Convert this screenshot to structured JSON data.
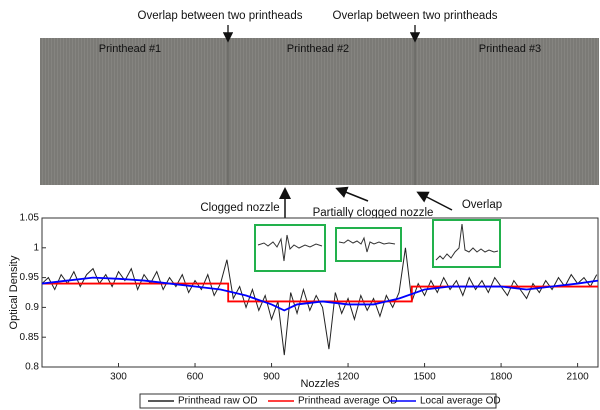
{
  "chart_data": {
    "type": "line",
    "annotations": [
      "Overlap between two printheads",
      "Overlap between two printheads",
      "Printhead #1",
      "Printhead #2",
      "Printhead #3",
      "Clogged nozzle",
      "Partially clogged nozzle",
      "Overlap"
    ],
    "x_label": "Nozzles",
    "y_label": "Optical Density",
    "xlim": [
      0,
      2180
    ],
    "ylim": [
      0.8,
      1.05
    ],
    "xticks": [
      300,
      600,
      900,
      1200,
      1500,
      1800,
      2100
    ],
    "yticks": [
      0.8,
      0.85,
      0.9,
      0.95,
      1,
      1.05
    ],
    "series": [
      {
        "name": "Printhead raw OD",
        "color": "#222222",
        "x": [
          0,
          25,
          50,
          75,
          100,
          125,
          150,
          175,
          200,
          225,
          250,
          275,
          300,
          325,
          350,
          375,
          400,
          425,
          450,
          475,
          500,
          525,
          550,
          575,
          600,
          625,
          650,
          675,
          700,
          725,
          750,
          775,
          800,
          825,
          850,
          875,
          900,
          925,
          950,
          975,
          1000,
          1025,
          1050,
          1075,
          1100,
          1125,
          1150,
          1175,
          1200,
          1225,
          1250,
          1275,
          1300,
          1325,
          1350,
          1375,
          1400,
          1425,
          1450,
          1475,
          1500,
          1525,
          1550,
          1575,
          1600,
          1625,
          1650,
          1675,
          1700,
          1725,
          1750,
          1775,
          1800,
          1825,
          1850,
          1875,
          1900,
          1925,
          1950,
          1975,
          2000,
          2025,
          2050,
          2075,
          2100,
          2125,
          2150,
          2175
        ],
        "values": [
          0.94,
          0.95,
          0.93,
          0.955,
          0.94,
          0.96,
          0.935,
          0.955,
          0.965,
          0.94,
          0.955,
          0.935,
          0.96,
          0.945,
          0.965,
          0.93,
          0.955,
          0.94,
          0.96,
          0.93,
          0.95,
          0.935,
          0.955,
          0.925,
          0.945,
          0.93,
          0.955,
          0.92,
          0.94,
          0.98,
          0.915,
          0.935,
          0.9,
          0.93,
          0.895,
          0.92,
          0.88,
          0.91,
          0.82,
          0.925,
          0.89,
          0.93,
          0.895,
          0.92,
          0.9,
          0.83,
          0.925,
          0.89,
          0.915,
          0.88,
          0.92,
          0.895,
          0.915,
          0.885,
          0.92,
          0.9,
          0.925,
          1.0,
          0.91,
          0.94,
          0.92,
          0.945,
          0.925,
          0.95,
          0.93,
          0.945,
          0.92,
          0.95,
          0.93,
          0.945,
          0.925,
          0.95,
          0.935,
          0.92,
          0.945,
          0.93,
          0.915,
          0.94,
          0.925,
          0.945,
          0.93,
          0.95,
          0.935,
          0.955,
          0.94,
          0.95,
          0.935,
          0.955
        ]
      },
      {
        "name": "Printhead average OD",
        "color": "#ff0000",
        "x": [
          0,
          730,
          730,
          1450,
          1450,
          2180
        ],
        "values": [
          0.94,
          0.94,
          0.91,
          0.91,
          0.935,
          0.935
        ]
      },
      {
        "name": "Local average OD",
        "color": "#0000ff",
        "x": [
          0,
          100,
          200,
          300,
          400,
          500,
          600,
          700,
          800,
          900,
          950,
          1000,
          1100,
          1200,
          1300,
          1400,
          1500,
          1600,
          1700,
          1800,
          1900,
          2000,
          2100,
          2180
        ],
        "values": [
          0.94,
          0.945,
          0.95,
          0.948,
          0.945,
          0.94,
          0.935,
          0.93,
          0.92,
          0.905,
          0.895,
          0.905,
          0.91,
          0.905,
          0.905,
          0.915,
          0.93,
          0.935,
          0.935,
          0.935,
          0.93,
          0.935,
          0.94,
          0.945
        ]
      }
    ]
  }
}
